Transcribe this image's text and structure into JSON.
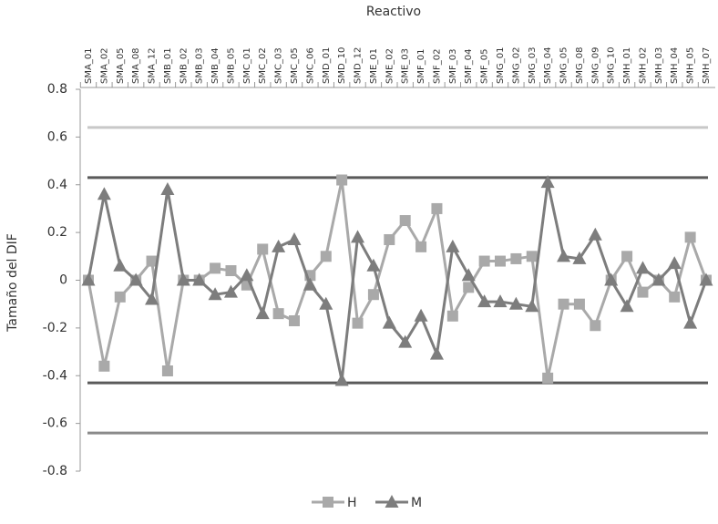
{
  "chart_data": {
    "type": "line",
    "x_label": "Reactivo",
    "y_label": "Tamaño del DIF",
    "categories": [
      "SMA_01",
      "SMA_02",
      "SMA_05",
      "SMA_08",
      "SMA_12",
      "SMB_01",
      "SMB_02",
      "SMB_03",
      "SMB_04",
      "SMB_05",
      "SMC_01",
      "SMC_02",
      "SMC_03",
      "SMC_05",
      "SMC_06",
      "SMD_01",
      "SMD_10",
      "SMD_12",
      "SME_01",
      "SME_02",
      "SME_03",
      "SMF_01",
      "SMF_02",
      "SMF_03",
      "SMF_04",
      "SMF_05",
      "SMG_01",
      "SMG_02",
      "SMG_03",
      "SMG_04",
      "SMG_05",
      "SMG_08",
      "SMG_09",
      "SMG_10",
      "SMH_01",
      "SMH_02",
      "SMH_03",
      "SMH_04",
      "SMH_05",
      "SMH_07"
    ],
    "series": [
      {
        "name": "H",
        "color": "#a9a9a9",
        "marker": "square",
        "values": [
          0,
          -0.36,
          -0.07,
          0,
          0.08,
          -0.38,
          0,
          0,
          0.05,
          0.04,
          -0.02,
          0.13,
          -0.14,
          -0.17,
          0.02,
          0.1,
          0.42,
          -0.18,
          -0.06,
          0.17,
          0.25,
          0.14,
          0.3,
          -0.15,
          -0.03,
          0.08,
          0.08,
          0.09,
          0.1,
          -0.41,
          -0.1,
          -0.1,
          -0.19,
          0,
          0.1,
          -0.05,
          0,
          -0.07,
          0.18,
          0
        ]
      },
      {
        "name": "M",
        "color": "#7d7d7d",
        "marker": "triangle",
        "values": [
          0,
          0.36,
          0.06,
          0,
          -0.08,
          0.38,
          0,
          0,
          -0.06,
          -0.05,
          0.02,
          -0.14,
          0.14,
          0.17,
          -0.02,
          -0.1,
          -0.42,
          0.18,
          0.06,
          -0.18,
          -0.26,
          -0.15,
          -0.31,
          0.14,
          0.02,
          -0.09,
          -0.09,
          -0.1,
          -0.11,
          0.41,
          0.1,
          0.09,
          0.19,
          0,
          -0.11,
          0.05,
          0,
          0.07,
          -0.18,
          0
        ]
      }
    ],
    "reference_lines": [
      {
        "value": 0.64,
        "color": "#c8c8c8"
      },
      {
        "value": 0.43,
        "color": "#5a5a5a"
      },
      {
        "value": -0.43,
        "color": "#5a5a5a"
      },
      {
        "value": -0.64,
        "color": "#8a8a8a"
      }
    ],
    "ylim": [
      -0.8,
      0.8
    ],
    "yticks": [
      0.8,
      0.6,
      0.4,
      0.2,
      0,
      -0.2,
      -0.4,
      -0.6,
      -0.8
    ],
    "legend": "bottom"
  }
}
